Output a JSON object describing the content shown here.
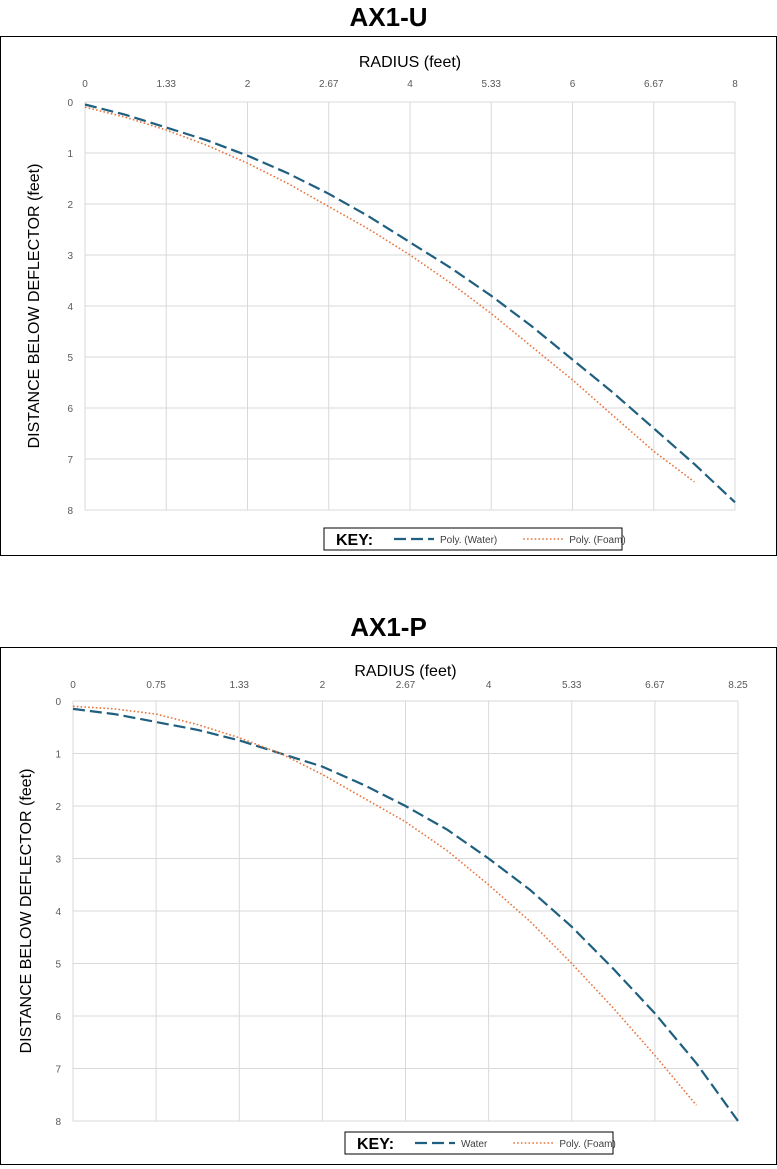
{
  "chart_data": [
    {
      "type": "line",
      "title": "AX1-U",
      "xlabel": "RADIUS (feet)",
      "ylabel": "DISTANCE BELOW DEFLECTOR (feet)",
      "x_tick_labels": [
        "0",
        "1.33",
        "2",
        "2.67",
        "4",
        "5.33",
        "6",
        "6.67",
        "8"
      ],
      "y_tick_labels": [
        "0",
        "1",
        "2",
        "3",
        "4",
        "5",
        "6",
        "7",
        "8"
      ],
      "ylim": [
        0,
        8
      ],
      "y_inverted": true,
      "x_axis_position": "top",
      "grid": true,
      "legend_position": "bottom",
      "legend": {
        "key_label": "KEY:"
      },
      "series": [
        {
          "name": "Poly. (Water)",
          "color": "#1f5f7f",
          "style": "dashed",
          "x": [
            0,
            0.5,
            1,
            1.5,
            2,
            2.5,
            3,
            3.5,
            4,
            4.5,
            5,
            5.5,
            6,
            6.5,
            7,
            7.5,
            8
          ],
          "y": [
            0.05,
            0.25,
            0.5,
            0.75,
            1.05,
            1.4,
            1.8,
            2.25,
            2.75,
            3.25,
            3.8,
            4.4,
            5.05,
            5.7,
            6.4,
            7.1,
            7.85
          ]
        },
        {
          "name": "Poly. (Foam)",
          "color": "#e8743b",
          "style": "dotted",
          "x": [
            0,
            0.5,
            1,
            1.5,
            2,
            2.5,
            3,
            3.5,
            4,
            4.5,
            5,
            5.5,
            6,
            6.5,
            7,
            7.5
          ],
          "y": [
            0.1,
            0.3,
            0.55,
            0.85,
            1.2,
            1.6,
            2.05,
            2.5,
            3.0,
            3.55,
            4.15,
            4.8,
            5.45,
            6.15,
            6.85,
            7.45
          ]
        }
      ]
    },
    {
      "type": "line",
      "title": "AX1-P",
      "xlabel": "RADIUS (feet)",
      "ylabel": "DISTANCE BELOW DEFLECTOR (feet)",
      "x_tick_labels": [
        "0",
        "0.75",
        "1.33",
        "2",
        "2.67",
        "4",
        "5.33",
        "6.67",
        "8.25"
      ],
      "y_tick_labels": [
        "0",
        "1",
        "2",
        "3",
        "4",
        "5",
        "6",
        "7",
        "8"
      ],
      "ylim": [
        0,
        8
      ],
      "y_inverted": true,
      "x_axis_position": "top",
      "grid": true,
      "legend_position": "bottom",
      "legend": {
        "key_label": "KEY:"
      },
      "series": [
        {
          "name": "Water",
          "color": "#1f5f7f",
          "style": "dashed",
          "x": [
            0,
            0.5,
            1,
            1.5,
            2,
            2.5,
            3,
            3.5,
            4,
            4.5,
            5,
            5.5,
            6,
            6.5,
            7,
            7.5,
            8
          ],
          "y": [
            0.15,
            0.25,
            0.4,
            0.55,
            0.75,
            1.0,
            1.25,
            1.6,
            2.0,
            2.45,
            3.0,
            3.6,
            4.3,
            5.1,
            5.95,
            6.9,
            8.0
          ]
        },
        {
          "name": "Poly. (Foam)",
          "color": "#e8743b",
          "style": "dotted",
          "x": [
            0,
            0.5,
            1,
            1.5,
            2,
            2.5,
            3,
            3.5,
            4,
            4.5,
            5,
            5.5,
            6,
            6.5,
            7,
            7.5
          ],
          "y": [
            0.1,
            0.15,
            0.25,
            0.45,
            0.7,
            1.0,
            1.4,
            1.85,
            2.3,
            2.85,
            3.5,
            4.2,
            5.0,
            5.85,
            6.75,
            7.7
          ]
        }
      ]
    }
  ]
}
